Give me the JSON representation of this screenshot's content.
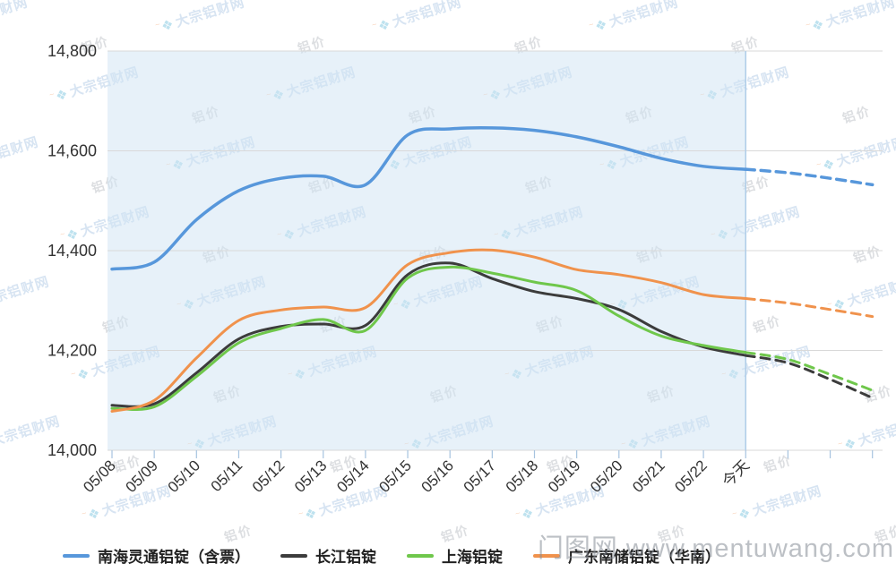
{
  "watermarks": {
    "brand": "大宗铝财网",
    "price_tag": "铝价",
    "site": "门图网 www.mentuwang.com"
  },
  "chart_data": {
    "type": "line",
    "title": "",
    "xlabel": "",
    "ylabel": "",
    "ylim": [
      14000,
      14800
    ],
    "grid": true,
    "legend_position": "bottom",
    "y_ticks": [
      14000,
      14200,
      14400,
      14600,
      14800
    ],
    "y_tick_labels": [
      "14,000",
      "14,200",
      "14,400",
      "14,600",
      "14,800"
    ],
    "x_labels": [
      "05/08",
      "05/09",
      "05/10",
      "05/11",
      "05/12",
      "05/13",
      "05/14",
      "05/15",
      "05/16",
      "05/17",
      "05/18",
      "05/19",
      "05/20",
      "05/21",
      "05/22",
      "今天"
    ],
    "today_index": 15,
    "forecast_tick_count": 3,
    "highlight_region": {
      "from_index": 0,
      "to_index": 15,
      "fill": "#CFE4F4",
      "edge_color": "#AFCDE8"
    },
    "colors": {
      "grid": "#D9D9D9",
      "tick": "#A6C3DF",
      "axis_label": "#333333"
    },
    "series": [
      {
        "name": "南海灵通铝锭（含票）",
        "color": "#5797DB",
        "values": [
          14363,
          14377,
          14462,
          14520,
          14545,
          14549,
          14532,
          14632,
          14644,
          14646,
          14641,
          14628,
          14608,
          14585,
          14569,
          14563,
          14556,
          14545,
          14532
        ]
      },
      {
        "name": "长江铝锭",
        "color": "#3C3C3C",
        "values": [
          14090,
          14093,
          14155,
          14223,
          14248,
          14253,
          14250,
          14352,
          14375,
          14344,
          14318,
          14304,
          14282,
          14238,
          14207,
          14190,
          14175,
          14142,
          14105
        ]
      },
      {
        "name": "上海铝锭",
        "color": "#6FC74B",
        "values": [
          14084,
          14087,
          14148,
          14215,
          14244,
          14262,
          14240,
          14345,
          14367,
          14355,
          14337,
          14320,
          14269,
          14229,
          14210,
          14196,
          14182,
          14152,
          14120
        ]
      },
      {
        "name": "广东南储铝锭（华南）",
        "color": "#F0924C",
        "values": [
          14078,
          14100,
          14185,
          14260,
          14281,
          14287,
          14286,
          14372,
          14396,
          14401,
          14387,
          14362,
          14352,
          14336,
          14312,
          14304,
          14295,
          14282,
          14268
        ]
      }
    ]
  }
}
